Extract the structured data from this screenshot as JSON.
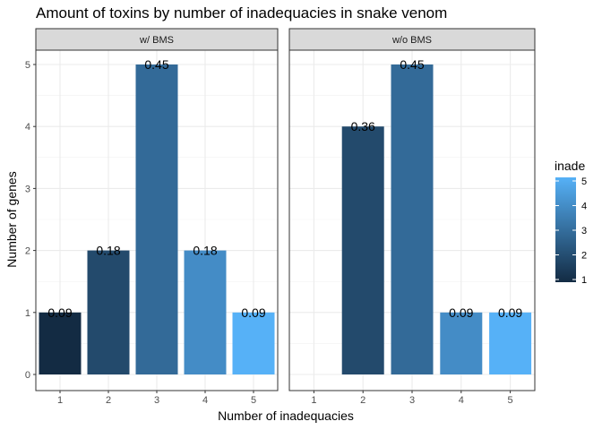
{
  "chart_data": {
    "type": "bar",
    "title": "Amount of toxins by number of inadequacies in snake venom",
    "xlabel": "Number of inadequacies",
    "ylabel": "Number of genes",
    "categories": [
      "1",
      "2",
      "3",
      "4",
      "5"
    ],
    "ylim": [
      0,
      5.2
    ],
    "y_ticks": [
      "0",
      "1",
      "2",
      "3",
      "4",
      "5"
    ],
    "grid": true,
    "legend": {
      "title": "inade",
      "position": "right",
      "ticks": [
        "1",
        "2",
        "3",
        "4",
        "5"
      ],
      "color_low": "#132B43",
      "color_high": "#56B1F7"
    },
    "panels": [
      {
        "strip": "w/ BMS",
        "bars": [
          {
            "x": "1",
            "value": 1,
            "label": "0.09",
            "color": "#132B43"
          },
          {
            "x": "2",
            "value": 2,
            "label": "0.18",
            "color": "#234A6C"
          },
          {
            "x": "3",
            "value": 5,
            "label": "0.45",
            "color": "#336A98"
          },
          {
            "x": "4",
            "value": 2,
            "label": "0.18",
            "color": "#448CC6"
          },
          {
            "x": "5",
            "value": 1,
            "label": "0.09",
            "color": "#56B1F7"
          }
        ]
      },
      {
        "strip": "w/o BMS",
        "bars": [
          {
            "x": "2",
            "value": 4,
            "label": "0.36",
            "color": "#234A6C"
          },
          {
            "x": "3",
            "value": 5,
            "label": "0.45",
            "color": "#336A98"
          },
          {
            "x": "4",
            "value": 1,
            "label": "0.09",
            "color": "#448CC6"
          },
          {
            "x": "5",
            "value": 1,
            "label": "0.09",
            "color": "#56B1F7"
          }
        ]
      }
    ]
  }
}
